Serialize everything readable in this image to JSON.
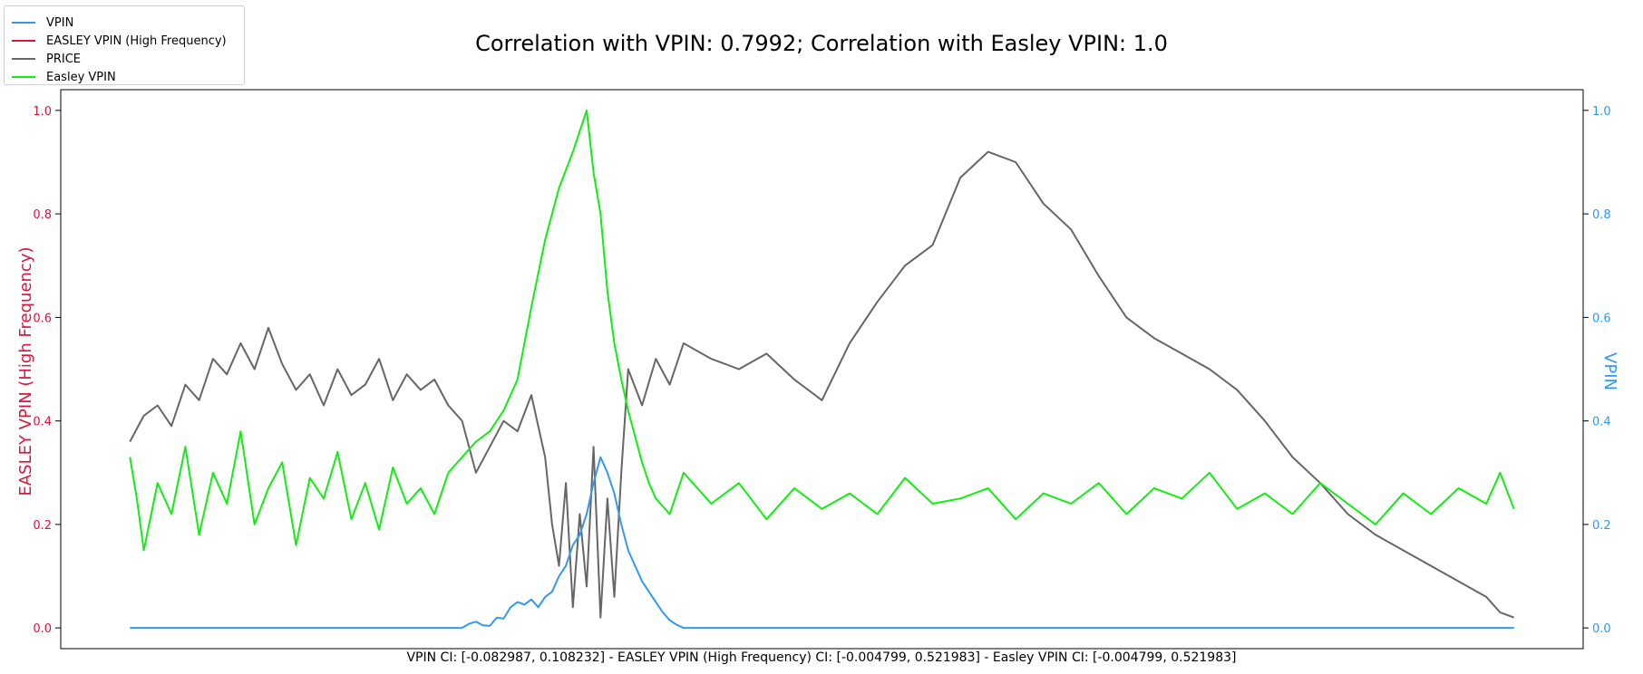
{
  "chart_data": {
    "type": "line",
    "title": "Correlation with VPIN: 0.7992; Correlation with Easley VPIN: 1.0",
    "caption": "VPIN CI: [-0.082987, 0.108232] - EASLEY VPIN (High Frequency) CI: [-0.004799, 0.521983] - Easley VPIN CI: [-0.004799, 0.521983]",
    "ylabel_left": "EASLEY VPIN (High Frequency)",
    "ylabel_right": "VPIN",
    "ylim_left": [
      -0.04,
      1.04
    ],
    "ylim_right": [
      -0.04,
      1.04
    ],
    "yticks_left": [
      "0.0",
      "0.2",
      "0.4",
      "0.6",
      "0.8",
      "1.0"
    ],
    "yticks_right": [
      "0.0",
      "0.2",
      "0.4",
      "0.6",
      "0.8",
      "1.0"
    ],
    "xlim": [
      -0.05,
      1.05
    ],
    "grid": false,
    "legend_position": "top-left",
    "colors": {
      "vpin": "#3399ee",
      "easley_hf": "#dc143c",
      "price": "#666666",
      "easley": "#11ee11",
      "left_axis": "#dc143c",
      "right_axis": "#3399ee"
    },
    "legend": [
      "VPIN",
      "EASLEY VPIN (High Frequency)",
      "PRICE",
      "Easley VPIN"
    ],
    "series": [
      {
        "name": "VPIN",
        "axis": "right",
        "x": [
          0,
          0.24,
          0.245,
          0.25,
          0.255,
          0.26,
          0.265,
          0.27,
          0.275,
          0.28,
          0.285,
          0.29,
          0.295,
          0.3,
          0.305,
          0.31,
          0.315,
          0.32,
          0.325,
          0.33,
          0.335,
          0.34,
          0.345,
          0.35,
          0.355,
          0.36,
          0.365,
          0.37,
          0.375,
          0.38,
          0.385,
          0.39,
          0.395,
          0.4,
          1.0
        ],
        "y": [
          0,
          0,
          0.008,
          0.012,
          0.005,
          0.004,
          0.02,
          0.018,
          0.04,
          0.05,
          0.045,
          0.055,
          0.04,
          0.06,
          0.07,
          0.1,
          0.12,
          0.16,
          0.18,
          0.22,
          0.28,
          0.33,
          0.3,
          0.26,
          0.2,
          0.15,
          0.12,
          0.09,
          0.07,
          0.05,
          0.03,
          0.015,
          0.006,
          0,
          0
        ]
      },
      {
        "name": "PRICE",
        "axis": "left",
        "x": [
          0,
          0.01,
          0.02,
          0.03,
          0.04,
          0.05,
          0.06,
          0.07,
          0.08,
          0.09,
          0.1,
          0.11,
          0.12,
          0.13,
          0.14,
          0.15,
          0.16,
          0.17,
          0.18,
          0.19,
          0.2,
          0.21,
          0.22,
          0.23,
          0.24,
          0.25,
          0.26,
          0.27,
          0.28,
          0.29,
          0.3,
          0.305,
          0.31,
          0.315,
          0.32,
          0.325,
          0.33,
          0.335,
          0.34,
          0.345,
          0.35,
          0.355,
          0.36,
          0.37,
          0.38,
          0.39,
          0.4,
          0.42,
          0.44,
          0.46,
          0.48,
          0.5,
          0.52,
          0.54,
          0.56,
          0.58,
          0.6,
          0.62,
          0.64,
          0.66,
          0.68,
          0.7,
          0.72,
          0.74,
          0.76,
          0.78,
          0.8,
          0.82,
          0.84,
          0.86,
          0.88,
          0.9,
          0.92,
          0.94,
          0.96,
          0.98,
          0.99,
          1.0
        ],
        "y": [
          0.36,
          0.41,
          0.43,
          0.39,
          0.47,
          0.44,
          0.52,
          0.49,
          0.55,
          0.5,
          0.58,
          0.51,
          0.46,
          0.49,
          0.43,
          0.5,
          0.45,
          0.47,
          0.52,
          0.44,
          0.49,
          0.46,
          0.48,
          0.43,
          0.4,
          0.3,
          0.35,
          0.4,
          0.38,
          0.45,
          0.33,
          0.2,
          0.12,
          0.28,
          0.04,
          0.22,
          0.08,
          0.35,
          0.02,
          0.25,
          0.06,
          0.3,
          0.5,
          0.43,
          0.52,
          0.47,
          0.55,
          0.52,
          0.5,
          0.53,
          0.48,
          0.44,
          0.55,
          0.63,
          0.7,
          0.74,
          0.87,
          0.92,
          0.9,
          0.82,
          0.77,
          0.68,
          0.6,
          0.56,
          0.53,
          0.5,
          0.46,
          0.4,
          0.33,
          0.28,
          0.22,
          0.18,
          0.15,
          0.12,
          0.09,
          0.06,
          0.03,
          0.02
        ]
      },
      {
        "name": "Easley VPIN",
        "axis": "left",
        "x": [
          0,
          0.005,
          0.01,
          0.02,
          0.03,
          0.04,
          0.05,
          0.06,
          0.07,
          0.08,
          0.09,
          0.1,
          0.11,
          0.12,
          0.13,
          0.14,
          0.15,
          0.16,
          0.17,
          0.18,
          0.19,
          0.2,
          0.21,
          0.22,
          0.23,
          0.24,
          0.25,
          0.26,
          0.27,
          0.28,
          0.29,
          0.3,
          0.31,
          0.32,
          0.33,
          0.335,
          0.34,
          0.345,
          0.35,
          0.355,
          0.36,
          0.365,
          0.37,
          0.375,
          0.38,
          0.39,
          0.4,
          0.42,
          0.44,
          0.46,
          0.48,
          0.5,
          0.52,
          0.54,
          0.56,
          0.58,
          0.6,
          0.62,
          0.64,
          0.66,
          0.68,
          0.7,
          0.72,
          0.74,
          0.76,
          0.78,
          0.8,
          0.82,
          0.84,
          0.86,
          0.88,
          0.9,
          0.92,
          0.94,
          0.96,
          0.98,
          0.99,
          1.0
        ],
        "y": [
          0.33,
          0.25,
          0.15,
          0.28,
          0.22,
          0.35,
          0.18,
          0.3,
          0.24,
          0.38,
          0.2,
          0.27,
          0.32,
          0.16,
          0.29,
          0.25,
          0.34,
          0.21,
          0.28,
          0.19,
          0.31,
          0.24,
          0.27,
          0.22,
          0.3,
          0.33,
          0.36,
          0.38,
          0.42,
          0.48,
          0.62,
          0.75,
          0.85,
          0.92,
          1.0,
          0.88,
          0.8,
          0.65,
          0.55,
          0.48,
          0.42,
          0.37,
          0.32,
          0.28,
          0.25,
          0.22,
          0.3,
          0.24,
          0.28,
          0.21,
          0.27,
          0.23,
          0.26,
          0.22,
          0.29,
          0.24,
          0.25,
          0.27,
          0.21,
          0.26,
          0.24,
          0.28,
          0.22,
          0.27,
          0.25,
          0.3,
          0.23,
          0.26,
          0.22,
          0.28,
          0.24,
          0.2,
          0.26,
          0.22,
          0.27,
          0.24,
          0.3,
          0.23
        ]
      }
    ]
  }
}
